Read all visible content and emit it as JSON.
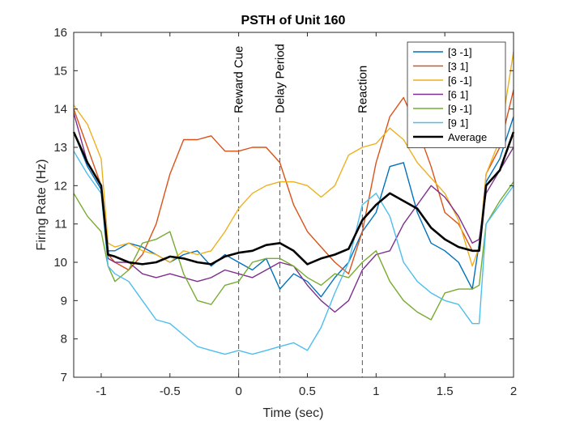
{
  "chart_data": {
    "type": "line",
    "title": "PSTH of Unit 160",
    "xlabel": "Time (sec)",
    "ylabel": "Firing Rate (Hz)",
    "xlim": [
      -1.2,
      2
    ],
    "ylim": [
      7,
      16
    ],
    "xticks": [
      -1,
      -0.5,
      0,
      0.5,
      1,
      1.5,
      2
    ],
    "xtick_labels": [
      "-1",
      "-0.5",
      "0",
      "0.5",
      "1",
      "1.5",
      "2"
    ],
    "yticks": [
      7,
      8,
      9,
      10,
      11,
      12,
      13,
      14,
      15,
      16
    ],
    "ytick_labels": [
      "7",
      "8",
      "9",
      "10",
      "11",
      "12",
      "13",
      "14",
      "15",
      "16"
    ],
    "grid": false,
    "legend_position": "top-right",
    "events": [
      {
        "label": "Reward Cue",
        "x": 0
      },
      {
        "label": "Delay Period",
        "x": 0.3
      },
      {
        "label": "Reaction",
        "x": 0.9
      }
    ],
    "x": [
      -1.2,
      -1.1,
      -1.0,
      -0.95,
      -0.9,
      -0.8,
      -0.7,
      -0.6,
      -0.5,
      -0.4,
      -0.3,
      -0.2,
      -0.1,
      0.0,
      0.1,
      0.2,
      0.3,
      0.4,
      0.5,
      0.6,
      0.7,
      0.8,
      0.9,
      1.0,
      1.1,
      1.2,
      1.3,
      1.4,
      1.5,
      1.6,
      1.7,
      1.75,
      1.8,
      1.9,
      2.0
    ],
    "series": [
      {
        "name": "[3 -1]",
        "color": "#0072BD",
        "values": [
          13.4,
          12.5,
          11.9,
          10.3,
          10.3,
          10.5,
          10.4,
          10.2,
          10.0,
          10.2,
          10.3,
          9.9,
          10.2,
          10.0,
          9.8,
          10.1,
          9.3,
          9.7,
          9.5,
          9.1,
          9.6,
          10.0,
          10.8,
          11.3,
          12.5,
          12.6,
          11.3,
          10.5,
          10.3,
          10.0,
          9.3,
          10.5,
          12.1,
          12.7,
          13.8
        ]
      },
      {
        "name": "[3 1]",
        "color": "#D95319",
        "values": [
          14.0,
          13.0,
          12.0,
          10.2,
          10.0,
          9.8,
          10.2,
          11.0,
          12.3,
          13.2,
          13.2,
          13.3,
          12.9,
          12.9,
          13.0,
          13.0,
          12.6,
          11.5,
          10.8,
          10.4,
          10.0,
          9.7,
          10.8,
          12.6,
          13.8,
          14.3,
          13.5,
          12.5,
          11.3,
          11.0,
          10.3,
          10.3,
          12.3,
          13.0,
          14.5
        ]
      },
      {
        "name": "[6 -1]",
        "color": "#EDB120",
        "values": [
          14.1,
          13.6,
          12.7,
          10.5,
          10.4,
          10.5,
          10.3,
          10.2,
          10.0,
          10.3,
          10.2,
          10.3,
          10.8,
          11.4,
          11.8,
          12.0,
          12.1,
          12.1,
          12.0,
          11.7,
          12.0,
          12.8,
          13.0,
          13.1,
          13.5,
          13.2,
          12.6,
          12.2,
          11.8,
          11.1,
          9.9,
          10.4,
          12.3,
          13.2,
          15.5
        ]
      },
      {
        "name": "[6 1]",
        "color": "#7E2F8E",
        "values": [
          13.9,
          12.6,
          12.0,
          10.1,
          10.0,
          10.0,
          9.7,
          9.6,
          9.7,
          9.6,
          9.5,
          9.6,
          9.8,
          9.7,
          9.6,
          9.8,
          10.0,
          9.9,
          9.4,
          9.0,
          8.7,
          9.0,
          9.8,
          10.2,
          10.3,
          11.0,
          11.5,
          12.0,
          11.7,
          11.2,
          10.5,
          10.6,
          11.8,
          12.4,
          13.0
        ]
      },
      {
        "name": "[9 -1]",
        "color": "#77AC30",
        "values": [
          11.8,
          11.2,
          10.8,
          9.9,
          9.5,
          9.8,
          10.5,
          10.6,
          10.8,
          9.7,
          9.0,
          8.9,
          9.4,
          9.5,
          10.0,
          10.1,
          10.1,
          9.9,
          9.6,
          9.4,
          9.7,
          9.6,
          10.0,
          10.3,
          9.5,
          9.0,
          8.7,
          8.5,
          9.2,
          9.3,
          9.3,
          9.4,
          11.0,
          11.6,
          12.1
        ]
      },
      {
        "name": "[9 1]",
        "color": "#4DBEEE",
        "values": [
          12.9,
          12.3,
          11.8,
          9.9,
          9.7,
          9.5,
          9.0,
          8.5,
          8.4,
          8.1,
          7.8,
          7.7,
          7.6,
          7.7,
          7.6,
          7.7,
          7.8,
          7.9,
          7.7,
          8.3,
          9.2,
          10.0,
          11.5,
          11.8,
          11.2,
          10.0,
          9.5,
          9.2,
          9.0,
          8.9,
          8.4,
          8.4,
          11.0,
          11.5,
          12.0
        ]
      },
      {
        "name": "Average",
        "color": "#000000",
        "values": [
          13.4,
          12.6,
          12.0,
          10.2,
          10.15,
          10.0,
          9.95,
          10.0,
          10.15,
          10.1,
          10.0,
          9.95,
          10.15,
          10.25,
          10.3,
          10.45,
          10.5,
          10.3,
          9.95,
          10.1,
          10.2,
          10.35,
          11.1,
          11.5,
          11.8,
          11.6,
          11.4,
          10.9,
          10.6,
          10.4,
          10.3,
          10.3,
          12.0,
          12.4,
          13.4
        ]
      }
    ]
  }
}
